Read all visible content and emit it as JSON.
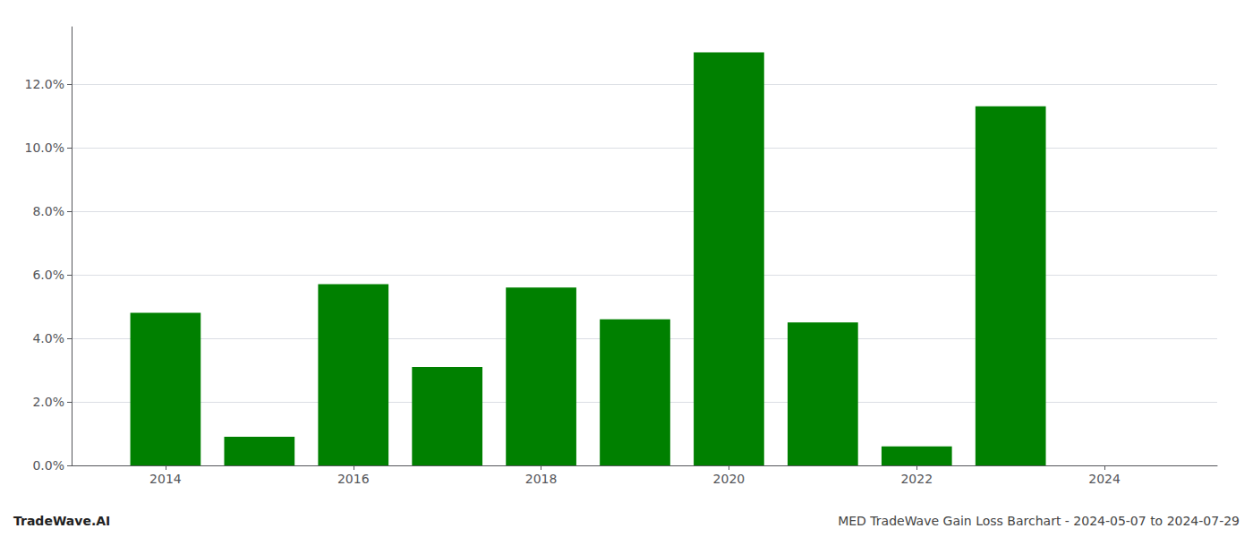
{
  "chart_data": {
    "type": "bar",
    "title": "TradeWave.AI",
    "subtitle": "MED TradeWave Gain Loss Barchart - 2024-05-07 to 2024-07-29",
    "x": [
      2014,
      2015,
      2016,
      2017,
      2018,
      2019,
      2020,
      2021,
      2022,
      2023
    ],
    "values": [
      0.048,
      0.009,
      0.057,
      0.031,
      0.056,
      0.046,
      0.13,
      0.045,
      0.006,
      0.113
    ],
    "color": "#008000",
    "xlim": [
      2013.0,
      2025.2
    ],
    "xticks": [
      2014,
      2016,
      2018,
      2020,
      2022,
      2024
    ],
    "ylim": [
      0,
      0.138
    ],
    "yticks": [
      {
        "value": 0.0,
        "label": "0.0%"
      },
      {
        "value": 0.02,
        "label": "2.0%"
      },
      {
        "value": 0.04,
        "label": "4.0%"
      },
      {
        "value": 0.06,
        "label": "6.0%"
      },
      {
        "value": 0.08,
        "label": "8.0%"
      },
      {
        "value": 0.1,
        "label": "10.0%"
      },
      {
        "value": 0.12,
        "label": "12.0%"
      }
    ],
    "grid": true
  }
}
